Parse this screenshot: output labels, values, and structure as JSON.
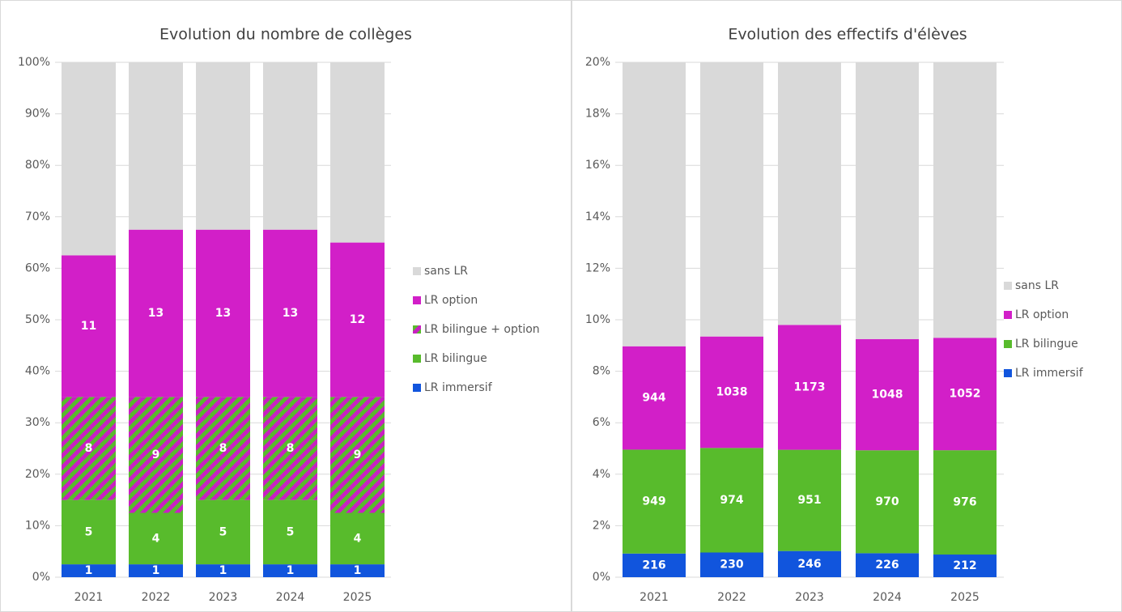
{
  "chart_data": [
    {
      "type": "bar",
      "stack_mode": "percent",
      "title": "Evolution du nombre de collèges",
      "categories": [
        "2021",
        "2022",
        "2023",
        "2024",
        "2025"
      ],
      "ylim": [
        0,
        100
      ],
      "yticks": [
        {
          "value": 0,
          "label": "0%"
        },
        {
          "value": 10,
          "label": "10%"
        },
        {
          "value": 20,
          "label": "20%"
        },
        {
          "value": 30,
          "label": "30%"
        },
        {
          "value": 40,
          "label": "40%"
        },
        {
          "value": 50,
          "label": "50%"
        },
        {
          "value": 60,
          "label": "60%"
        },
        {
          "value": 70,
          "label": "70%"
        },
        {
          "value": 80,
          "label": "80%"
        },
        {
          "value": 90,
          "label": "90%"
        },
        {
          "value": 100,
          "label": "100%"
        }
      ],
      "grid": true,
      "legend": "right",
      "series": [
        {
          "name": "LR immersif",
          "color": "#1155dd",
          "values": [
            1,
            1,
            1,
            1,
            1
          ]
        },
        {
          "name": "LR bilingue",
          "color": "#58bb2c",
          "values": [
            5,
            4,
            5,
            5,
            4
          ]
        },
        {
          "name": "LR bilingue + option",
          "color": "#58bb2c",
          "hatch_color": "#c91fc3",
          "values": [
            8,
            9,
            8,
            8,
            9
          ]
        },
        {
          "name": "LR option",
          "color": "#d21fc8",
          "values": [
            11,
            13,
            13,
            13,
            12
          ]
        },
        {
          "name": "sans LR",
          "color": "#d9d9d9",
          "show_labels": false,
          "values": [
            15,
            13,
            13,
            13,
            14
          ]
        }
      ]
    },
    {
      "type": "bar",
      "stack_mode": "percent",
      "title": "Evolution des effectifs d'élèves",
      "categories": [
        "2021",
        "2022",
        "2023",
        "2024",
        "2025"
      ],
      "ylim": [
        0,
        20
      ],
      "yticks": [
        {
          "value": 0,
          "label": "0%"
        },
        {
          "value": 2,
          "label": "2%"
        },
        {
          "value": 4,
          "label": "4%"
        },
        {
          "value": 6,
          "label": "6%"
        },
        {
          "value": 8,
          "label": "8%"
        },
        {
          "value": 10,
          "label": "10%"
        },
        {
          "value": 12,
          "label": "12%"
        },
        {
          "value": 14,
          "label": "14%"
        },
        {
          "value": 16,
          "label": "16%"
        },
        {
          "value": 18,
          "label": "18%"
        },
        {
          "value": 20,
          "label": "20%"
        }
      ],
      "grid": true,
      "legend": "right",
      "series": [
        {
          "name": "LR immersif",
          "color": "#1155dd",
          "values": [
            216,
            230,
            246,
            226,
            212
          ]
        },
        {
          "name": "LR bilingue",
          "color": "#58bb2c",
          "values": [
            949,
            974,
            951,
            970,
            976
          ]
        },
        {
          "name": "LR option",
          "color": "#d21fc8",
          "values": [
            944,
            1038,
            1173,
            1048,
            1052
          ]
        },
        {
          "name": "sans LR",
          "color": "#d9d9d9",
          "show_labels": false,
          "values": [
            21403,
            21737,
            21814,
            22015,
            21846
          ]
        }
      ]
    }
  ]
}
